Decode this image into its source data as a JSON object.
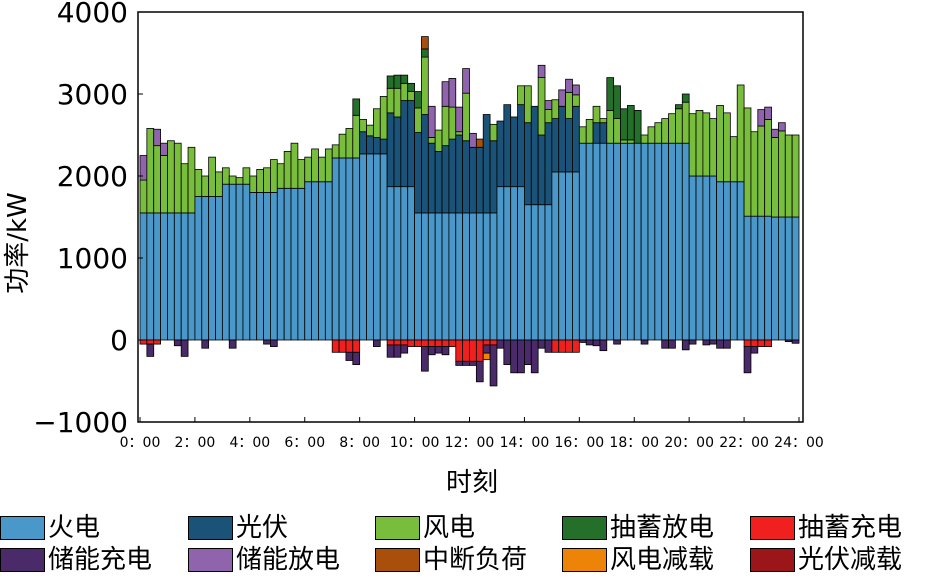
{
  "chart_data": {
    "type": "bar",
    "stacked": true,
    "title": "",
    "xlabel": "时刻",
    "ylabel": "功率/kW",
    "ylim": [
      -1000,
      4000
    ],
    "y_ticks": [
      "4000",
      "3000",
      "2000",
      "1000",
      "0",
      "−1000"
    ],
    "y_tick_values": [
      4000,
      3000,
      2000,
      1000,
      0,
      -1000
    ],
    "x_tick_labels": [
      "0：00",
      "2：00",
      "4：00",
      "6：00",
      "8：00",
      "10：00",
      "12：00",
      "14：00",
      "16：00",
      "18：00",
      "20：00",
      "22：00",
      "24：00"
    ],
    "slots": 96,
    "series": [
      {
        "name": "火电",
        "color": "#4a97c9",
        "values": [
          1550,
          1550,
          1550,
          1550,
          1550,
          1550,
          1550,
          1550,
          1750,
          1750,
          1750,
          1750,
          1900,
          1900,
          1900,
          1900,
          1800,
          1800,
          1800,
          1800,
          1850,
          1850,
          1850,
          1850,
          1930,
          1930,
          1930,
          1930,
          2220,
          2220,
          2220,
          2220,
          2270,
          2270,
          2270,
          2270,
          1870,
          1870,
          1870,
          1870,
          1550,
          1550,
          1550,
          1550,
          1550,
          1550,
          1550,
          1550,
          1550,
          1550,
          1550,
          1550,
          1870,
          1870,
          1870,
          1870,
          1650,
          1650,
          1650,
          1650,
          2050,
          2050,
          2050,
          2050,
          2400,
          2400,
          2400,
          2400,
          2400,
          2400,
          2400,
          2400,
          2400,
          2400,
          2400,
          2400,
          2400,
          2400,
          2400,
          2400,
          2000,
          2000,
          2000,
          2000,
          1930,
          1930,
          1930,
          1930,
          1510,
          1510,
          1510,
          1510,
          1500,
          1500,
          1500,
          1500
        ]
      },
      {
        "name": "光伏",
        "color": "#1b5378",
        "values": [
          0,
          0,
          0,
          0,
          0,
          0,
          0,
          0,
          0,
          0,
          0,
          0,
          0,
          0,
          0,
          0,
          0,
          0,
          0,
          0,
          0,
          0,
          0,
          0,
          0,
          0,
          0,
          0,
          0,
          0,
          0,
          0,
          270,
          220,
          200,
          180,
          900,
          850,
          1050,
          1050,
          980,
          1200,
          850,
          750,
          820,
          900,
          950,
          880,
          800,
          800,
          1200,
          880,
          800,
          1000,
          850,
          1000,
          1000,
          1200,
          850,
          1000,
          650,
          800,
          650,
          800,
          0,
          0,
          250,
          250,
          0,
          0,
          0,
          0,
          0,
          0,
          0,
          0,
          0,
          0,
          0,
          0,
          0,
          0,
          0,
          0,
          0,
          0,
          0,
          0,
          0,
          0,
          0,
          0,
          0,
          0,
          0,
          0
        ]
      },
      {
        "name": "风电",
        "color": "#78be3c",
        "values": [
          400,
          1030,
          820,
          700,
          880,
          850,
          600,
          800,
          330,
          250,
          480,
          300,
          200,
          100,
          80,
          200,
          200,
          280,
          300,
          400,
          300,
          450,
          550,
          350,
          300,
          400,
          300,
          400,
          160,
          290,
          360,
          520,
          150,
          130,
          350,
          520,
          300,
          350,
          210,
          110,
          300,
          700,
          70,
          260,
          480,
          390,
          40,
          580,
          0,
          0,
          0,
          200,
          0,
          0,
          0,
          230,
          450,
          0,
          700,
          160,
          230,
          0,
          320,
          140,
          200,
          290,
          200,
          50,
          400,
          300,
          40,
          40,
          0,
          100,
          200,
          250,
          300,
          360,
          420,
          500,
          760,
          800,
          770,
          700,
          930,
          840,
          550,
          1180,
          1320,
          1030,
          1100,
          1180,
          970,
          1050,
          1000,
          1000
        ]
      },
      {
        "name": "抽蓄放电",
        "color": "#246f29",
        "values": [
          0,
          0,
          0,
          0,
          0,
          0,
          0,
          0,
          0,
          0,
          0,
          0,
          0,
          0,
          0,
          0,
          0,
          0,
          0,
          0,
          0,
          0,
          0,
          0,
          0,
          0,
          0,
          0,
          0,
          0,
          0,
          200,
          0,
          0,
          0,
          0,
          150,
          160,
          100,
          100,
          200,
          100,
          0,
          0,
          0,
          0,
          0,
          0,
          0,
          0,
          0,
          0,
          0,
          0,
          0,
          0,
          0,
          0,
          0,
          0,
          0,
          0,
          0,
          0,
          0,
          0,
          0,
          0,
          400,
          400,
          380,
          420,
          400,
          0,
          0,
          0,
          0,
          0,
          50,
          100,
          0,
          0,
          0,
          0,
          0,
          0,
          0,
          0,
          0,
          0,
          0,
          0,
          0,
          0,
          0,
          0
        ]
      },
      {
        "name": "储能放电",
        "color": "#9063ad",
        "values": [
          300,
          0,
          200,
          150,
          0,
          0,
          0,
          0,
          0,
          0,
          0,
          0,
          0,
          0,
          0,
          0,
          0,
          0,
          0,
          0,
          0,
          0,
          0,
          0,
          0,
          0,
          0,
          0,
          0,
          0,
          0,
          0,
          0,
          0,
          0,
          0,
          0,
          0,
          0,
          0,
          0,
          0,
          380,
          0,
          300,
          350,
          300,
          300,
          170,
          0,
          0,
          0,
          0,
          0,
          0,
          0,
          0,
          0,
          150,
          110,
          0,
          200,
          160,
          120,
          0,
          0,
          0,
          0,
          0,
          0,
          0,
          0,
          0,
          0,
          0,
          0,
          0,
          0,
          0,
          0,
          0,
          0,
          0,
          0,
          0,
          0,
          0,
          0,
          0,
          0,
          200,
          150,
          100,
          100,
          0,
          0
        ]
      },
      {
        "name": "中断负荷",
        "color": "#a84f0c",
        "values": [
          0,
          0,
          0,
          0,
          0,
          0,
          0,
          0,
          0,
          0,
          0,
          0,
          0,
          0,
          0,
          0,
          0,
          0,
          0,
          0,
          0,
          0,
          0,
          0,
          0,
          0,
          0,
          0,
          0,
          0,
          0,
          0,
          0,
          0,
          0,
          0,
          0,
          0,
          0,
          0,
          0,
          150,
          0,
          0,
          0,
          0,
          0,
          0,
          0,
          100,
          0,
          0,
          0,
          0,
          0,
          0,
          0,
          0,
          0,
          0,
          0,
          0,
          0,
          0,
          0,
          0,
          0,
          0,
          0,
          0,
          0,
          0,
          0,
          0,
          0,
          0,
          0,
          0,
          0,
          0,
          0,
          0,
          0,
          0,
          0,
          0,
          0,
          0,
          0,
          0,
          0,
          0,
          0,
          0,
          0,
          0
        ]
      },
      {
        "name": "抽蓄充电",
        "color": "#f0201e",
        "values": [
          -50,
          -50,
          -50,
          0,
          0,
          0,
          0,
          0,
          0,
          0,
          0,
          0,
          0,
          0,
          0,
          0,
          0,
          0,
          0,
          0,
          0,
          0,
          0,
          0,
          0,
          0,
          0,
          0,
          -150,
          -150,
          -150,
          -150,
          0,
          0,
          0,
          0,
          -60,
          -60,
          -60,
          -80,
          -80,
          -80,
          -80,
          -80,
          -80,
          -80,
          -260,
          -260,
          -260,
          -260,
          -60,
          -60,
          0,
          0,
          0,
          0,
          0,
          0,
          0,
          0,
          -150,
          -150,
          -150,
          -150,
          0,
          0,
          0,
          0,
          0,
          0,
          0,
          0,
          0,
          0,
          0,
          0,
          0,
          0,
          0,
          0,
          0,
          0,
          0,
          0,
          0,
          0,
          0,
          0,
          -80,
          -80,
          -80,
          -80,
          0,
          0,
          0,
          0
        ]
      },
      {
        "name": "储能充电",
        "color": "#4a2a68",
        "values": [
          0,
          -150,
          0,
          0,
          0,
          -70,
          -200,
          0,
          0,
          -100,
          0,
          0,
          0,
          -100,
          0,
          0,
          0,
          0,
          -50,
          -80,
          0,
          0,
          0,
          0,
          0,
          0,
          0,
          0,
          0,
          0,
          -100,
          -150,
          0,
          0,
          -80,
          0,
          -150,
          -150,
          -100,
          0,
          0,
          -300,
          -100,
          -80,
          -100,
          0,
          -50,
          -50,
          -50,
          -250,
          -100,
          -500,
          -100,
          -300,
          -400,
          -400,
          -300,
          -400,
          -100,
          -150,
          0,
          0,
          0,
          0,
          -30,
          -60,
          -70,
          -130,
          0,
          -50,
          0,
          0,
          0,
          -50,
          0,
          0,
          -100,
          -100,
          0,
          -120,
          -50,
          0,
          -60,
          -50,
          -100,
          -100,
          0,
          0,
          -320,
          -80,
          0,
          0,
          0,
          0,
          -20,
          -40
        ]
      },
      {
        "name": "风电减载",
        "color": "#ee8407",
        "values": [
          0,
          0,
          0,
          0,
          0,
          0,
          0,
          0,
          0,
          0,
          0,
          0,
          0,
          0,
          0,
          0,
          0,
          0,
          0,
          0,
          0,
          0,
          0,
          0,
          0,
          0,
          0,
          0,
          0,
          0,
          0,
          0,
          0,
          0,
          0,
          0,
          0,
          0,
          0,
          0,
          0,
          0,
          0,
          0,
          0,
          0,
          0,
          0,
          0,
          0,
          -80,
          0,
          0,
          0,
          0,
          0,
          0,
          0,
          0,
          0,
          0,
          0,
          0,
          0,
          0,
          0,
          0,
          0,
          0,
          0,
          0,
          0,
          0,
          0,
          0,
          0,
          0,
          0,
          0,
          0,
          0,
          0,
          0,
          0,
          0,
          0,
          0,
          0,
          0,
          0,
          0,
          0,
          0,
          0,
          0,
          0
        ]
      },
      {
        "name": "光伏减载",
        "color": "#9c1619",
        "values": [
          0,
          0,
          0,
          0,
          0,
          0,
          0,
          0,
          0,
          0,
          0,
          0,
          0,
          0,
          0,
          0,
          0,
          0,
          0,
          0,
          0,
          0,
          0,
          0,
          0,
          0,
          0,
          0,
          0,
          0,
          0,
          0,
          0,
          0,
          0,
          0,
          0,
          0,
          0,
          0,
          0,
          0,
          0,
          0,
          0,
          0,
          0,
          0,
          0,
          0,
          0,
          0,
          0,
          0,
          0,
          0,
          0,
          0,
          0,
          0,
          0,
          0,
          0,
          0,
          0,
          0,
          0,
          0,
          0,
          0,
          0,
          0,
          0,
          0,
          0,
          0,
          0,
          0,
          0,
          0,
          0,
          0,
          0,
          0,
          0,
          0,
          0,
          0,
          0,
          0,
          0,
          0,
          0,
          0,
          0,
          0
        ]
      }
    ],
    "legend": [
      {
        "label": "火电",
        "color": "#4a97c9"
      },
      {
        "label": "光伏",
        "color": "#1b5378"
      },
      {
        "label": "风电",
        "color": "#78be3c"
      },
      {
        "label": "抽蓄放电",
        "color": "#246f29"
      },
      {
        "label": "抽蓄充电",
        "color": "#f0201e"
      },
      {
        "label": "储能充电",
        "color": "#4a2a68"
      },
      {
        "label": "储能放电",
        "color": "#9063ad"
      },
      {
        "label": "中断负荷",
        "color": "#a84f0c"
      },
      {
        "label": "风电减载",
        "color": "#ee8407"
      },
      {
        "label": "光伏减载",
        "color": "#9c1619"
      }
    ]
  }
}
